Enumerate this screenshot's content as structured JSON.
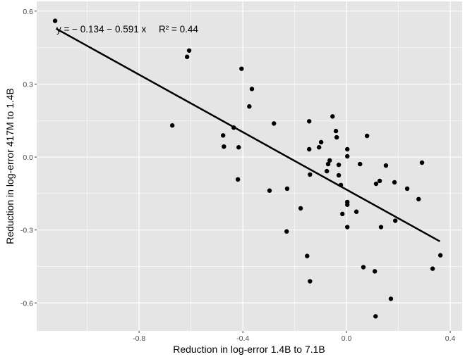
{
  "chart_data": {
    "type": "scatter",
    "title": "",
    "xlabel": "Reduction in log-error 1.4B to 7.1B",
    "ylabel": "Reduction in log-error 417M to 1.4B",
    "xlim": [
      -1.195,
      0.446
    ],
    "ylim": [
      -0.715,
      0.64
    ],
    "xticks": [
      -0.8,
      -0.4,
      0.0,
      0.4
    ],
    "xtick_labels": [
      "-0.8",
      "-0.4",
      "0.0",
      "0.4"
    ],
    "yticks": [
      -0.6,
      -0.3,
      0.0,
      0.3,
      0.6
    ],
    "ytick_labels": [
      "-0.6",
      "-0.3",
      "0.0",
      "0.3",
      "0.6"
    ],
    "grid": true,
    "background": "#e5e5e5",
    "point_color": "#000000",
    "annotation": {
      "equation": "y = − 0.134 − 0.591 x",
      "r2": "R² = 0.44"
    },
    "fit": {
      "intercept": -0.134,
      "slope": -0.591,
      "x_range": [
        -1.12,
        0.36
      ]
    },
    "points": [
      [
        -1.124,
        0.56
      ],
      [
        -0.607,
        0.438
      ],
      [
        -0.615,
        0.412
      ],
      [
        -0.672,
        0.13
      ],
      [
        -0.405,
        0.363
      ],
      [
        -0.365,
        0.28
      ],
      [
        -0.375,
        0.208
      ],
      [
        -0.28,
        0.138
      ],
      [
        -0.476,
        0.089
      ],
      [
        -0.473,
        0.043
      ],
      [
        -0.435,
        0.121
      ],
      [
        -0.416,
        0.04
      ],
      [
        -0.419,
        -0.092
      ],
      [
        -0.144,
        0.147
      ],
      [
        -0.054,
        0.167
      ],
      [
        -0.041,
        0.107
      ],
      [
        -0.038,
        0.081
      ],
      [
        0.079,
        0.087
      ],
      [
        -0.098,
        0.061
      ],
      [
        -0.106,
        0.04
      ],
      [
        -0.144,
        0.032
      ],
      [
        0.003,
        0.032
      ],
      [
        0.003,
        0.003
      ],
      [
        -0.065,
        -0.014
      ],
      [
        -0.071,
        -0.029
      ],
      [
        -0.03,
        -0.032
      ],
      [
        0.052,
        -0.029
      ],
      [
        0.152,
        -0.035
      ],
      [
        0.291,
        -0.023
      ],
      [
        -0.076,
        -0.058
      ],
      [
        -0.03,
        -0.075
      ],
      [
        -0.141,
        -0.072
      ],
      [
        -0.022,
        -0.115
      ],
      [
        0.128,
        -0.098
      ],
      [
        0.114,
        -0.11
      ],
      [
        0.185,
        -0.104
      ],
      [
        0.234,
        -0.13
      ],
      [
        -0.297,
        -0.138
      ],
      [
        -0.229,
        -0.13
      ],
      [
        0.278,
        -0.173
      ],
      [
        0.003,
        -0.185
      ],
      [
        0.003,
        -0.196
      ],
      [
        -0.177,
        -0.211
      ],
      [
        0.038,
        -0.225
      ],
      [
        -0.016,
        -0.234
      ],
      [
        0.188,
        -0.262
      ],
      [
        0.003,
        -0.288
      ],
      [
        0.133,
        -0.288
      ],
      [
        -0.231,
        -0.306
      ],
      [
        -0.152,
        -0.407
      ],
      [
        0.362,
        -0.404
      ],
      [
        0.065,
        -0.453
      ],
      [
        0.109,
        -0.47
      ],
      [
        0.332,
        -0.459
      ],
      [
        -0.141,
        -0.511
      ],
      [
        0.171,
        -0.583
      ],
      [
        0.112,
        -0.655
      ]
    ]
  }
}
